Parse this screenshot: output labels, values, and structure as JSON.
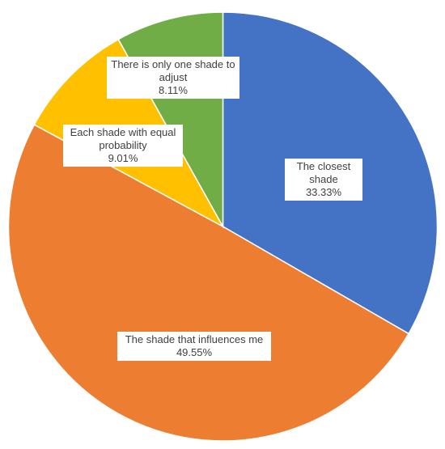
{
  "chart_data": {
    "type": "pie",
    "categories": [
      "The closest shade",
      "The shade that influences me",
      "Each shade with equal probability",
      "There is only one shade to adjust"
    ],
    "values": [
      33.33,
      49.55,
      9.01,
      8.11
    ],
    "value_labels": [
      "33.33%",
      "49.55%",
      "9.01%",
      "8.11%"
    ],
    "colors": [
      "#4472c4",
      "#ed7d31",
      "#ffc000",
      "#70ad47"
    ]
  }
}
